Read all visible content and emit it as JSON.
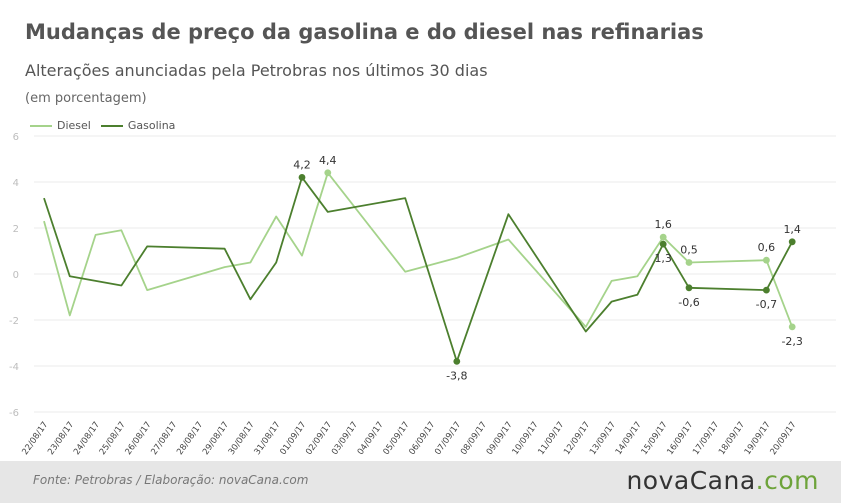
{
  "header": {
    "title": "Mudanças de preço da gasolina e do diesel nas refinarias",
    "subtitle": "Alterações anunciadas pela Petrobras nos últimos 30 dias",
    "unit": "(em porcentagem)"
  },
  "colors": {
    "diesel": "#a5d38b",
    "gasolina": "#4c7f2e",
    "grid": "#ebebeb",
    "tick": "#bdbdbd"
  },
  "chart_data": {
    "type": "line",
    "title": "Mudanças de preço da gasolina e do diesel nas refinarias",
    "subtitle": "Alterações anunciadas pela Petrobras nos últimos 30 dias",
    "ylabel": "(em porcentagem)",
    "ylim": [
      -6,
      6
    ],
    "yticks": [
      6,
      4,
      2,
      0,
      -2,
      -4,
      -6
    ],
    "grid": true,
    "legend": "top-left",
    "categories": [
      "22/08/17",
      "23/08/17",
      "24/08/17",
      "25/08/17",
      "26/08/17",
      "27/08/17",
      "28/08/17",
      "29/08/17",
      "30/08/17",
      "31/08/17",
      "01/09/17",
      "02/09/17",
      "03/09/17",
      "04/09/17",
      "05/09/17",
      "06/09/17",
      "07/09/17",
      "08/09/17",
      "09/09/17",
      "10/09/17",
      "11/09/17",
      "12/09/17",
      "13/09/17",
      "14/09/17",
      "15/09/17",
      "16/09/17",
      "17/09/17",
      "18/09/17",
      "19/09/17",
      "20/09/17"
    ],
    "series": [
      {
        "name": "Diesel",
        "points": [
          [
            0,
            2.3
          ],
          [
            1,
            -1.8
          ],
          [
            2,
            1.7
          ],
          [
            3,
            1.9
          ],
          [
            4,
            -0.7
          ],
          [
            7,
            0.3
          ],
          [
            8,
            0.5
          ],
          [
            9,
            2.5
          ],
          [
            10,
            0.8
          ],
          [
            11,
            4.4
          ],
          [
            14,
            0.1
          ],
          [
            16,
            0.7
          ],
          [
            18,
            1.5
          ],
          [
            21,
            -2.3
          ],
          [
            22,
            -0.3
          ],
          [
            23,
            -0.1
          ],
          [
            24,
            1.6
          ],
          [
            25,
            0.5
          ],
          [
            28,
            0.6
          ],
          [
            29,
            -2.3
          ]
        ]
      },
      {
        "name": "Gasolina",
        "points": [
          [
            0,
            3.3
          ],
          [
            1,
            -0.1
          ],
          [
            3,
            -0.5
          ],
          [
            4,
            1.2
          ],
          [
            7,
            1.1
          ],
          [
            8,
            -1.1
          ],
          [
            9,
            0.5
          ],
          [
            10,
            4.2
          ],
          [
            11,
            2.7
          ],
          [
            14,
            3.3
          ],
          [
            16,
            -3.8
          ],
          [
            18,
            2.6
          ],
          [
            21,
            -2.5
          ],
          [
            22,
            -1.2
          ],
          [
            23,
            -0.9
          ],
          [
            24,
            1.3
          ],
          [
            25,
            -0.6
          ],
          [
            28,
            -0.7
          ],
          [
            29,
            1.4
          ]
        ]
      }
    ],
    "annotations": [
      {
        "series": "Gasolina",
        "x": 10,
        "y": 4.2,
        "text": "4,2",
        "pos": "above"
      },
      {
        "series": "Diesel",
        "x": 11,
        "y": 4.4,
        "text": "4,4",
        "pos": "above"
      },
      {
        "series": "Gasolina",
        "x": 16,
        "y": -3.8,
        "text": "-3,8",
        "pos": "below"
      },
      {
        "series": "Diesel",
        "x": 24,
        "y": 1.6,
        "text": "1,6",
        "pos": "above"
      },
      {
        "series": "Gasolina",
        "x": 24,
        "y": 1.3,
        "text": "1,3",
        "pos": "below"
      },
      {
        "series": "Diesel",
        "x": 25,
        "y": 0.5,
        "text": "0,5",
        "pos": "above"
      },
      {
        "series": "Gasolina",
        "x": 25,
        "y": -0.6,
        "text": "-0,6",
        "pos": "below"
      },
      {
        "series": "Diesel",
        "x": 28,
        "y": 0.6,
        "text": "0,6",
        "pos": "above"
      },
      {
        "series": "Gasolina",
        "x": 28,
        "y": -0.7,
        "text": "-0,7",
        "pos": "below"
      },
      {
        "series": "Gasolina",
        "x": 29,
        "y": 1.4,
        "text": "1,4",
        "pos": "above"
      },
      {
        "series": "Diesel",
        "x": 29,
        "y": -2.3,
        "text": "-2,3",
        "pos": "below"
      }
    ]
  },
  "footer": {
    "source": "Fonte:  Petrobras   / Elaboração:  novaCana.com",
    "brand_a": "nova",
    "brand_b": "Cana",
    "brand_c": ".com"
  }
}
